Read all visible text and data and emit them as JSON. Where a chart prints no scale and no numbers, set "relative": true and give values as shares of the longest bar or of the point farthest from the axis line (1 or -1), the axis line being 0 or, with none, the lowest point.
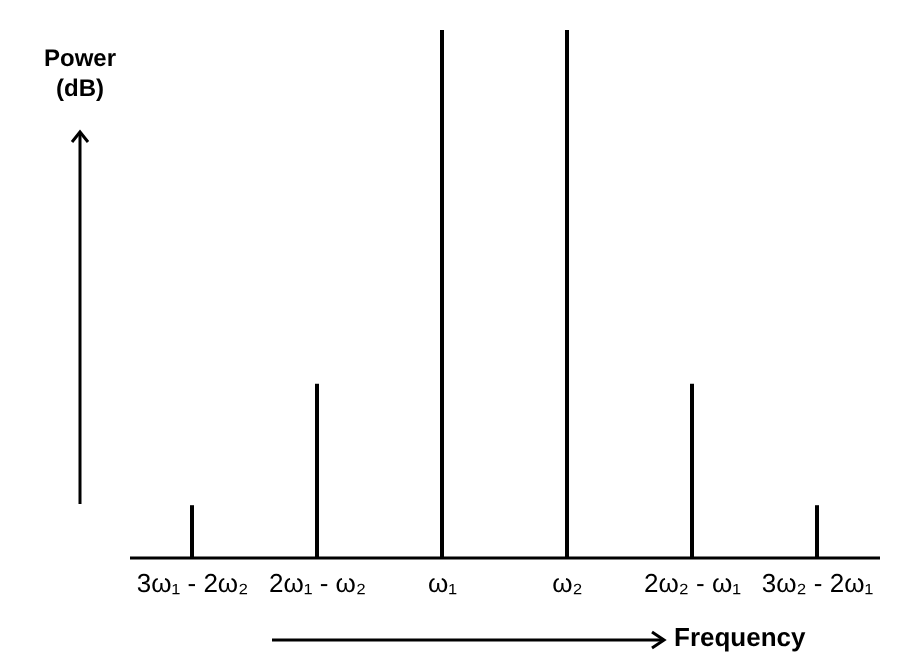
{
  "chart_data": {
    "type": "bar",
    "relative": true,
    "xlabel": "Frequency",
    "ylabel": "Power\n(dB)",
    "color": "#000000",
    "categories": [
      "3ω₁ - 2ω₂",
      "2ω₁ - ω₂",
      "ω₁",
      "ω₂",
      "2ω₂ - ω₁",
      "3ω₂ - 2ω₁"
    ],
    "values": [
      0.1,
      0.33,
      1,
      1,
      0.33,
      0.1
    ]
  }
}
